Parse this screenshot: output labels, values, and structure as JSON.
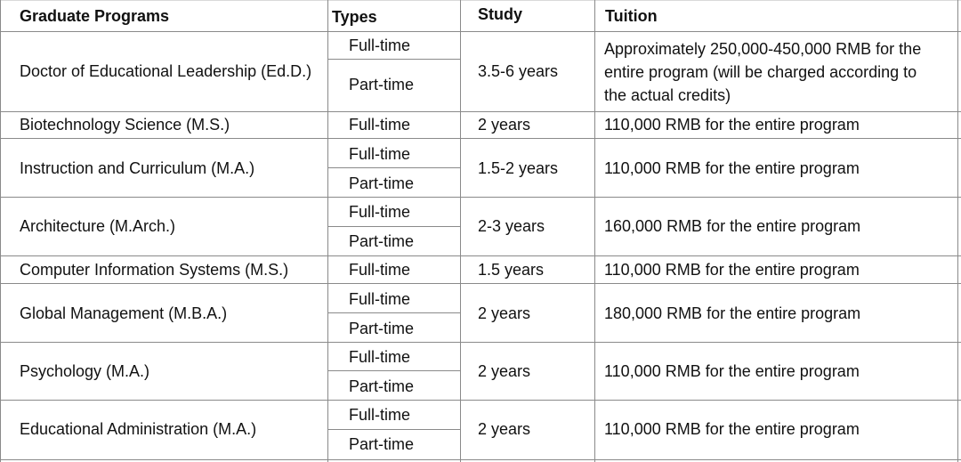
{
  "headers": {
    "program": "Graduate Programs",
    "types": "Types",
    "study": "Study",
    "tuition": "Tuition"
  },
  "rows": [
    {
      "program": "Doctor of Educational Leadership (Ed.D.)",
      "types": [
        "Full-time",
        "Part-time"
      ],
      "study": "3.5-6 years",
      "tuition_lines": [
        "Approximately 250,000-450,000 RMB for the",
        "entire program (will be charged according to",
        "the actual credits)"
      ]
    },
    {
      "program": "Biotechnology Science (M.S.)",
      "types": [
        "Full-time"
      ],
      "study": "2 years",
      "tuition": "110,000 RMB for the entire program"
    },
    {
      "program": "Instruction and Curriculum (M.A.)",
      "types": [
        "Full-time",
        "Part-time"
      ],
      "study": "1.5-2 years",
      "tuition": "110,000 RMB for the entire program"
    },
    {
      "program": "Architecture (M.Arch.)",
      "types": [
        "Full-time",
        "Part-time"
      ],
      "study": "2-3 years",
      "tuition": "160,000 RMB for the entire program"
    },
    {
      "program": "Computer Information Systems (M.S.)",
      "types": [
        "Full-time"
      ],
      "study": "1.5 years",
      "tuition": "110,000 RMB for the entire program"
    },
    {
      "program": "Global Management (M.B.A.)",
      "types": [
        "Full-time",
        "Part-time"
      ],
      "study": "2 years",
      "tuition": "180,000 RMB for the entire program"
    },
    {
      "program": "Psychology (M.A.)",
      "types": [
        "Full-time",
        "Part-time"
      ],
      "study": "2 years",
      "tuition": "110,000 RMB for the entire program"
    },
    {
      "program": "Educational Administration (M.A.)",
      "types": [
        "Full-time",
        "Part-time"
      ],
      "study": "2 years",
      "tuition": "110,000 RMB for the entire program"
    }
  ]
}
